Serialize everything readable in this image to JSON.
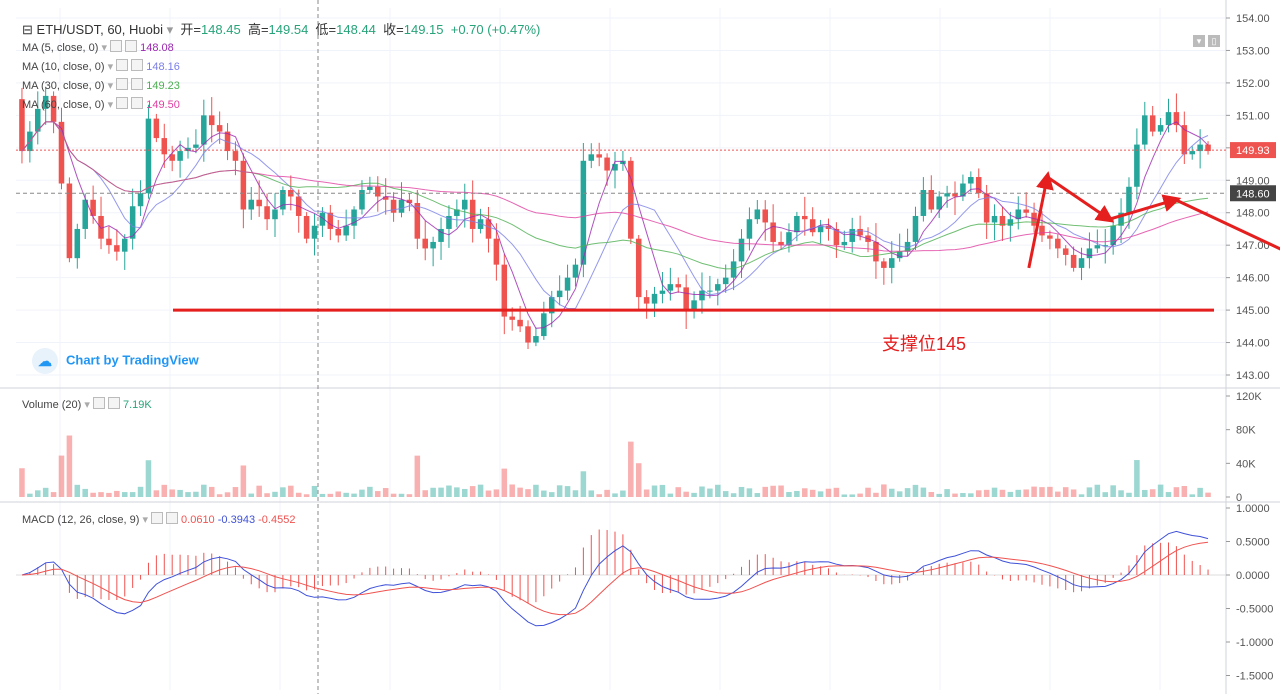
{
  "header": {
    "symbol": "ETH/USDT, 60, Huobi",
    "open_label": "开=",
    "open": "148.45",
    "high_label": "高=",
    "high": "149.54",
    "low_label": "低=",
    "low": "148.44",
    "close_label": "收=",
    "close": "149.15",
    "change": "+0.70 (+0.47%)"
  },
  "legends": {
    "ma5": {
      "label": "MA (5, close, 0)",
      "value": "148.08",
      "color": "#9c27b0"
    },
    "ma10": {
      "label": "MA (10, close, 0)",
      "value": "148.16",
      "color": "#7b7fe6"
    },
    "ma30": {
      "label": "MA (30, close, 0)",
      "value": "149.23",
      "color": "#4caf50"
    },
    "ma60": {
      "label": "MA (60, close, 0)",
      "value": "149.50",
      "color": "#e040a0"
    },
    "volume": {
      "label": "Volume (20)",
      "value": "7.19K"
    },
    "macd": {
      "label": "MACD (12, 26, close, 9)",
      "v1": "0.0610",
      "v2": "-0.3943",
      "v3": "-0.4552"
    }
  },
  "watermark": "Chart by TradingView",
  "annotation": "支撑位145",
  "colors": {
    "up": "#26a69a",
    "down": "#ef5350",
    "support": "#e51e1e",
    "grid": "#f0f3fa"
  },
  "chart_data": [
    {
      "type": "candlestick",
      "panel": "price",
      "ylim": [
        142.7,
        154.2
      ],
      "yticks": [
        "154.00",
        "153.00",
        "152.00",
        "151.00",
        "150.00",
        "149.00",
        "148.00",
        "147.00",
        "146.00",
        "145.00",
        "144.00",
        "143.00"
      ],
      "price_labels": [
        {
          "value": "149.93",
          "color": "#ef5350"
        },
        {
          "value": "148.60",
          "color": "#444444"
        }
      ],
      "support_level": 145.0,
      "close_series": [
        149.9,
        150.5,
        151.2,
        151.6,
        150.8,
        148.9,
        146.6,
        147.5,
        148.4,
        147.9,
        147.2,
        147.0,
        146.8,
        147.2,
        148.2,
        148.6,
        150.9,
        150.3,
        149.8,
        149.6,
        149.9,
        150.0,
        150.1,
        151.0,
        150.7,
        150.5,
        149.9,
        149.6,
        148.1,
        148.4,
        148.2,
        147.8,
        148.1,
        148.7,
        148.5,
        147.9,
        147.2,
        147.6,
        148.0,
        147.5,
        147.3,
        147.6,
        148.1,
        148.7,
        148.8,
        148.5,
        148.4,
        148.0,
        148.4,
        148.3,
        147.2,
        146.9,
        147.1,
        147.5,
        147.9,
        148.1,
        148.4,
        147.5,
        147.8,
        147.2,
        146.4,
        144.8,
        144.7,
        144.5,
        144.0,
        144.2,
        144.9,
        145.4,
        145.6,
        146.0,
        146.4,
        149.6,
        149.8,
        149.7,
        149.3,
        149.5,
        149.6,
        147.2,
        145.4,
        145.2,
        145.5,
        145.6,
        145.8,
        145.7,
        145.0,
        145.3,
        145.6,
        145.6,
        145.8,
        146.0,
        146.5,
        147.2,
        147.8,
        148.1,
        147.7,
        147.1,
        147.0,
        147.4,
        147.9,
        147.8,
        147.4,
        147.6,
        147.5,
        147.0,
        147.1,
        147.5,
        147.3,
        147.1,
        146.5,
        146.3,
        146.6,
        146.8,
        147.1,
        147.9,
        148.7,
        148.1,
        148.5,
        148.6,
        148.5,
        148.9,
        149.1,
        148.6,
        147.7,
        147.9,
        147.6,
        147.8,
        148.1,
        148.0,
        147.6,
        147.3,
        147.2,
        146.9,
        146.7,
        146.3,
        146.6,
        146.9,
        147.0,
        147.0,
        147.6,
        148.0,
        148.8,
        150.1,
        151.0,
        150.5,
        150.7,
        151.1,
        150.7,
        149.8,
        149.9,
        150.1,
        149.9
      ],
      "annotation_arrows": [
        [
          [
            146.3,
            150.6
          ],
          [
            149.1,
            152.8
          ]
        ],
        [
          [
            149.1,
            152.8
          ],
          [
            147.8,
            160.2
          ]
        ],
        [
          [
            147.8,
            160.2
          ],
          [
            148.4,
            168.1
          ]
        ],
        [
          [
            148.4,
            168.1
          ],
          [
            146.4,
            184.6
          ]
        ],
        [
          [
            146.4,
            184.6
          ],
          [
            151.6,
            200.0
          ]
        ],
        [
          [
            151.6,
            200.0
          ],
          [
            150.6,
            205.0
          ]
        ],
        [
          [
            150.6,
            205.0
          ],
          [
            151.2,
            209.3
          ]
        ],
        [
          [
            151.2,
            209.3
          ],
          [
            150.0,
            213.0
          ]
        ],
        [
          [
            150.0,
            213.0
          ],
          [
            150.7,
            221.0
          ]
        ]
      ]
    },
    {
      "type": "bar",
      "panel": "volume",
      "ylim": [
        0,
        120
      ],
      "yticks": [
        "120K",
        "80K",
        "40K",
        "0"
      ]
    },
    {
      "type": "line",
      "panel": "macd",
      "ylim": [
        -1.55,
        1.05
      ],
      "yticks": [
        "1.0000",
        "0.5000",
        "0.0000",
        "-0.5000",
        "-1.0000",
        "-1.5000"
      ],
      "series": [
        {
          "key": "macd",
          "color": "#3f51d8"
        },
        {
          "key": "signal",
          "color": "#ef5350"
        }
      ]
    }
  ]
}
